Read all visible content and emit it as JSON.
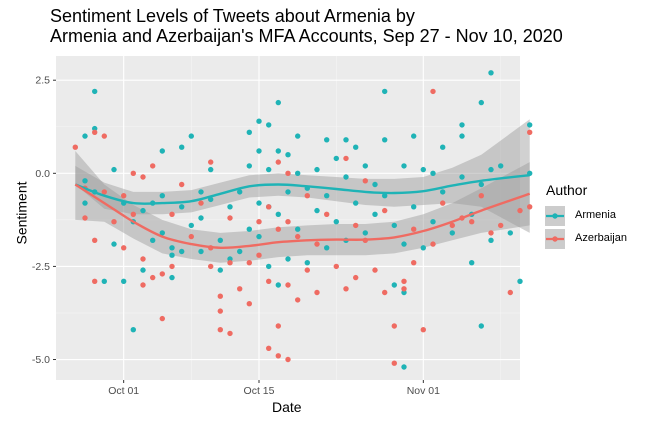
{
  "chart_data": {
    "type": "scatter",
    "title": "Sentiment Levels of Tweets about Armenia by",
    "subtitle": "Armenia and Azerbaijan's MFA Accounts, Sep 27 - Nov 10, 2020",
    "xlabel": "Date",
    "ylabel": "Sentiment",
    "x_range": [
      "2020-09-24",
      "2020-11-11"
    ],
    "ylim": [
      -5.55,
      3.15
    ],
    "x_ticks": [
      {
        "date": "2020-10-01",
        "label": "Oct 01"
      },
      {
        "date": "2020-10-15",
        "label": "Oct 15"
      },
      {
        "date": "2020-11-01",
        "label": "Nov 01"
      }
    ],
    "y_ticks": [
      {
        "value": 2.5,
        "label": "2.5"
      },
      {
        "value": 0,
        "label": "0.0"
      },
      {
        "value": -2.5,
        "label": "-2.5"
      },
      {
        "value": -5,
        "label": "-5.0"
      }
    ],
    "grid": true,
    "legend": {
      "title": "Author",
      "position": "right"
    },
    "series": [
      {
        "name": "Armenia",
        "color": "#1FB3B6",
        "points": [
          [
            "2020-09-27",
            1.0
          ],
          [
            "2020-09-27",
            -0.2
          ],
          [
            "2020-09-27",
            -0.8
          ],
          [
            "2020-09-28",
            2.2
          ],
          [
            "2020-09-28",
            1.2
          ],
          [
            "2020-09-28",
            -0.5
          ],
          [
            "2020-09-29",
            -2.9
          ],
          [
            "2020-09-30",
            0.1
          ],
          [
            "2020-09-30",
            -1.9
          ],
          [
            "2020-10-01",
            -0.8
          ],
          [
            "2020-10-01",
            -2.9
          ],
          [
            "2020-10-02",
            -4.2
          ],
          [
            "2020-10-02",
            -1.3
          ],
          [
            "2020-10-03",
            -1.0
          ],
          [
            "2020-10-03",
            -2.6
          ],
          [
            "2020-10-04",
            -0.8
          ],
          [
            "2020-10-04",
            -1.8
          ],
          [
            "2020-10-05",
            0.6
          ],
          [
            "2020-10-05",
            -0.6
          ],
          [
            "2020-10-05",
            -1.6
          ],
          [
            "2020-10-06",
            -2.0
          ],
          [
            "2020-10-06",
            -2.8
          ],
          [
            "2020-10-06",
            -2.2
          ],
          [
            "2020-10-07",
            0.7
          ],
          [
            "2020-10-07",
            -0.9
          ],
          [
            "2020-10-07",
            -2.1
          ],
          [
            "2020-10-08",
            1.0
          ],
          [
            "2020-10-08",
            -1.4
          ],
          [
            "2020-10-09",
            -0.5
          ],
          [
            "2020-10-09",
            -1.2
          ],
          [
            "2020-10-09",
            -2.1
          ],
          [
            "2020-10-10",
            0.1
          ],
          [
            "2020-10-10",
            -0.7
          ],
          [
            "2020-10-11",
            -1.8
          ],
          [
            "2020-10-11",
            -2.6
          ],
          [
            "2020-10-12",
            -0.9
          ],
          [
            "2020-10-12",
            -2.3
          ],
          [
            "2020-10-13",
            -0.5
          ],
          [
            "2020-10-13",
            -2.1
          ],
          [
            "2020-10-14",
            1.1
          ],
          [
            "2020-10-14",
            0.2
          ],
          [
            "2020-10-14",
            -1.5
          ],
          [
            "2020-10-15",
            1.4
          ],
          [
            "2020-10-15",
            0.6
          ],
          [
            "2020-10-15",
            -0.8
          ],
          [
            "2020-10-15",
            -1.7
          ],
          [
            "2020-10-16",
            1.3
          ],
          [
            "2020-10-16",
            0.1
          ],
          [
            "2020-10-16",
            -0.9
          ],
          [
            "2020-10-16",
            -2.5
          ],
          [
            "2020-10-17",
            1.9
          ],
          [
            "2020-10-17",
            0.6
          ],
          [
            "2020-10-17",
            -1.1
          ],
          [
            "2020-10-17",
            -3.0
          ],
          [
            "2020-10-18",
            0.5
          ],
          [
            "2020-10-18",
            -0.5
          ],
          [
            "2020-10-18",
            -2.3
          ],
          [
            "2020-10-19",
            1.0
          ],
          [
            "2020-10-19",
            0.0
          ],
          [
            "2020-10-19",
            -1.5
          ],
          [
            "2020-10-20",
            -0.4
          ],
          [
            "2020-10-20",
            -2.4
          ],
          [
            "2020-10-21",
            0.1
          ],
          [
            "2020-10-21",
            -1.0
          ],
          [
            "2020-10-22",
            0.9
          ],
          [
            "2020-10-22",
            -0.6
          ],
          [
            "2020-10-22",
            -2.0
          ],
          [
            "2020-10-23",
            0.4
          ],
          [
            "2020-10-23",
            -1.3
          ],
          [
            "2020-10-24",
            0.9
          ],
          [
            "2020-10-24",
            -0.1
          ],
          [
            "2020-10-24",
            -1.8
          ],
          [
            "2020-10-25",
            0.7
          ],
          [
            "2020-10-25",
            -0.8
          ],
          [
            "2020-10-26",
            0.2
          ],
          [
            "2020-10-26",
            -1.6
          ],
          [
            "2020-10-27",
            -0.3
          ],
          [
            "2020-10-27",
            -1.1
          ],
          [
            "2020-10-28",
            2.2
          ],
          [
            "2020-10-28",
            0.9
          ],
          [
            "2020-10-28",
            -0.6
          ],
          [
            "2020-10-29",
            -1.4
          ],
          [
            "2020-10-29",
            -3.0
          ],
          [
            "2020-10-30",
            0.2
          ],
          [
            "2020-10-30",
            -5.2
          ],
          [
            "2020-10-30",
            -3.2
          ],
          [
            "2020-10-30",
            -1.9
          ],
          [
            "2020-10-31",
            1.0
          ],
          [
            "2020-10-31",
            -0.9
          ],
          [
            "2020-11-01",
            0.1
          ],
          [
            "2020-11-01",
            -2.0
          ],
          [
            "2020-11-02",
            0.0
          ],
          [
            "2020-11-02",
            -1.3
          ],
          [
            "2020-11-03",
            0.7
          ],
          [
            "2020-11-03",
            -0.5
          ],
          [
            "2020-11-04",
            -1.6
          ],
          [
            "2020-11-05",
            1.0
          ],
          [
            "2020-11-05",
            -0.1
          ],
          [
            "2020-11-06",
            -1.1
          ],
          [
            "2020-11-06",
            -2.4
          ],
          [
            "2020-11-07",
            1.9
          ],
          [
            "2020-11-07",
            -4.1
          ],
          [
            "2020-11-07",
            -0.3
          ],
          [
            "2020-11-08",
            2.7
          ],
          [
            "2020-11-08",
            0.1
          ],
          [
            "2020-11-08",
            -1.8
          ],
          [
            "2020-11-09",
            0.2
          ],
          [
            "2020-11-10",
            -1.6
          ],
          [
            "2020-11-11",
            -2.9
          ],
          [
            "2020-11-12",
            0.0
          ],
          [
            "2020-11-12",
            1.3
          ],
          [
            "2020-11-05",
            1.3
          ]
        ],
        "trend": [
          [
            "2020-09-26",
            -0.3
          ],
          [
            "2020-09-29",
            -0.6
          ],
          [
            "2020-10-02",
            -0.8
          ],
          [
            "2020-10-05",
            -0.8
          ],
          [
            "2020-10-08",
            -0.75
          ],
          [
            "2020-10-11",
            -0.55
          ],
          [
            "2020-10-14",
            -0.35
          ],
          [
            "2020-10-17",
            -0.3
          ],
          [
            "2020-10-20",
            -0.35
          ],
          [
            "2020-10-23",
            -0.42
          ],
          [
            "2020-10-26",
            -0.5
          ],
          [
            "2020-10-29",
            -0.53
          ],
          [
            "2020-11-01",
            -0.48
          ],
          [
            "2020-11-04",
            -0.33
          ],
          [
            "2020-11-07",
            -0.2
          ],
          [
            "2020-11-12",
            -0.05
          ]
        ],
        "band": [
          [
            "2020-09-26",
            -0.3,
            0.2
          ],
          [
            "2020-09-29",
            -0.95,
            -0.25
          ],
          [
            "2020-10-02",
            -1.1,
            -0.5
          ],
          [
            "2020-10-05",
            -1.1,
            -0.5
          ],
          [
            "2020-10-08",
            -1.05,
            -0.45
          ],
          [
            "2020-10-11",
            -0.85,
            -0.25
          ],
          [
            "2020-10-14",
            -0.65,
            -0.05
          ],
          [
            "2020-10-17",
            -0.6,
            0.0
          ],
          [
            "2020-10-20",
            -0.65,
            -0.05
          ],
          [
            "2020-10-23",
            -0.75,
            -0.1
          ],
          [
            "2020-10-26",
            -0.85,
            -0.15
          ],
          [
            "2020-10-29",
            -0.9,
            -0.15
          ],
          [
            "2020-11-01",
            -0.85,
            -0.1
          ],
          [
            "2020-11-04",
            -0.8,
            0.15
          ],
          [
            "2020-11-07",
            -0.9,
            0.5
          ],
          [
            "2020-11-12",
            -1.6,
            1.45
          ]
        ]
      },
      {
        "name": "Azerbaijan",
        "color": "#EF6B62",
        "points": [
          [
            "2020-09-26",
            0.7
          ],
          [
            "2020-09-27",
            -0.4
          ],
          [
            "2020-09-27",
            -1.2
          ],
          [
            "2020-09-28",
            1.1
          ],
          [
            "2020-09-28",
            -2.9
          ],
          [
            "2020-09-28",
            -1.8
          ],
          [
            "2020-09-29",
            1.0
          ],
          [
            "2020-09-29",
            -0.5
          ],
          [
            "2020-09-30",
            -1.3
          ],
          [
            "2020-10-01",
            -0.6
          ],
          [
            "2020-10-01",
            -2.0
          ],
          [
            "2020-10-02",
            0.0
          ],
          [
            "2020-10-02",
            -1.1
          ],
          [
            "2020-10-03",
            -0.1
          ],
          [
            "2020-10-03",
            -3.0
          ],
          [
            "2020-10-03",
            -2.3
          ],
          [
            "2020-10-04",
            0.2
          ],
          [
            "2020-10-04",
            -2.8
          ],
          [
            "2020-10-05",
            -3.9
          ],
          [
            "2020-10-05",
            -2.7
          ],
          [
            "2020-10-06",
            -1.1
          ],
          [
            "2020-10-06",
            -2.5
          ],
          [
            "2020-10-07",
            -0.3
          ],
          [
            "2020-10-08",
            -1.7
          ],
          [
            "2020-10-09",
            -0.8
          ],
          [
            "2020-10-10",
            0.3
          ],
          [
            "2020-10-10",
            -2.0
          ],
          [
            "2020-10-10",
            -2.5
          ],
          [
            "2020-10-11",
            -3.3
          ],
          [
            "2020-10-11",
            -3.7
          ],
          [
            "2020-10-11",
            -4.2
          ],
          [
            "2020-10-12",
            -1.2
          ],
          [
            "2020-10-12",
            -2.4
          ],
          [
            "2020-10-12",
            -4.3
          ],
          [
            "2020-10-13",
            -3.1
          ],
          [
            "2020-10-14",
            -2.4
          ],
          [
            "2020-10-14",
            -3.5
          ],
          [
            "2020-10-15",
            -1.3
          ],
          [
            "2020-10-15",
            -2.2
          ],
          [
            "2020-10-16",
            -0.9
          ],
          [
            "2020-10-16",
            -2.9
          ],
          [
            "2020-10-16",
            -4.7
          ],
          [
            "2020-10-17",
            0.3
          ],
          [
            "2020-10-17",
            -1.5
          ],
          [
            "2020-10-17",
            -4.1
          ],
          [
            "2020-10-17",
            -4.9
          ],
          [
            "2020-10-18",
            0.0
          ],
          [
            "2020-10-18",
            -1.3
          ],
          [
            "2020-10-18",
            -3.0
          ],
          [
            "2020-10-18",
            -5.0
          ],
          [
            "2020-10-19",
            -1.7
          ],
          [
            "2020-10-19",
            -3.4
          ],
          [
            "2020-10-20",
            -0.6
          ],
          [
            "2020-10-20",
            -2.6
          ],
          [
            "2020-10-21",
            -1.9
          ],
          [
            "2020-10-21",
            -3.2
          ],
          [
            "2020-10-22",
            -1.1
          ],
          [
            "2020-10-23",
            -2.5
          ],
          [
            "2020-10-24",
            0.4
          ],
          [
            "2020-10-24",
            -3.1
          ],
          [
            "2020-10-25",
            -1.4
          ],
          [
            "2020-10-25",
            -2.8
          ],
          [
            "2020-10-26",
            -0.2
          ],
          [
            "2020-10-26",
            -1.8
          ],
          [
            "2020-10-27",
            -2.6
          ],
          [
            "2020-10-28",
            -1.0
          ],
          [
            "2020-10-28",
            -3.2
          ],
          [
            "2020-10-29",
            -4.1
          ],
          [
            "2020-10-29",
            -5.1
          ],
          [
            "2020-10-30",
            -2.9
          ],
          [
            "2020-10-30",
            -3.1
          ],
          [
            "2020-10-31",
            -1.5
          ],
          [
            "2020-10-31",
            -2.4
          ],
          [
            "2020-11-01",
            -4.2
          ],
          [
            "2020-11-02",
            2.2
          ],
          [
            "2020-11-02",
            -1.9
          ],
          [
            "2020-11-03",
            -0.8
          ],
          [
            "2020-11-04",
            -1.4
          ],
          [
            "2020-11-05",
            -1.2
          ],
          [
            "2020-11-06",
            -1.3
          ],
          [
            "2020-11-07",
            -0.6
          ],
          [
            "2020-11-08",
            -1.6
          ],
          [
            "2020-11-09",
            -1.4
          ],
          [
            "2020-11-10",
            -3.2
          ],
          [
            "2020-11-11",
            -1.0
          ],
          [
            "2020-11-12",
            1.1
          ],
          [
            "2020-11-12",
            -0.9
          ]
        ],
        "trend": [
          [
            "2020-09-26",
            -0.3
          ],
          [
            "2020-09-29",
            -0.8
          ],
          [
            "2020-10-02",
            -1.3
          ],
          [
            "2020-10-05",
            -1.7
          ],
          [
            "2020-10-08",
            -1.9
          ],
          [
            "2020-10-11",
            -2.0
          ],
          [
            "2020-10-14",
            -1.95
          ],
          [
            "2020-10-17",
            -1.85
          ],
          [
            "2020-10-20",
            -1.8
          ],
          [
            "2020-10-23",
            -1.78
          ],
          [
            "2020-10-26",
            -1.78
          ],
          [
            "2020-10-29",
            -1.72
          ],
          [
            "2020-11-01",
            -1.55
          ],
          [
            "2020-11-04",
            -1.3
          ],
          [
            "2020-11-07",
            -1.0
          ],
          [
            "2020-11-12",
            -0.55
          ]
        ],
        "band": [
          [
            "2020-09-26",
            -1.25,
            0.6
          ],
          [
            "2020-09-29",
            -1.3,
            -0.3
          ],
          [
            "2020-10-02",
            -1.75,
            -0.85
          ],
          [
            "2020-10-05",
            -2.15,
            -1.25
          ],
          [
            "2020-10-08",
            -2.3,
            -1.5
          ],
          [
            "2020-10-11",
            -2.4,
            -1.6
          ],
          [
            "2020-10-14",
            -2.35,
            -1.55
          ],
          [
            "2020-10-17",
            -2.25,
            -1.45
          ],
          [
            "2020-10-20",
            -2.2,
            -1.4
          ],
          [
            "2020-10-23",
            -2.2,
            -1.36
          ],
          [
            "2020-10-26",
            -2.2,
            -1.36
          ],
          [
            "2020-10-29",
            -2.15,
            -1.3
          ],
          [
            "2020-11-01",
            -2.0,
            -1.1
          ],
          [
            "2020-11-04",
            -1.8,
            -0.8
          ],
          [
            "2020-11-07",
            -1.6,
            -0.4
          ],
          [
            "2020-11-12",
            -1.4,
            0.3
          ]
        ]
      }
    ]
  }
}
